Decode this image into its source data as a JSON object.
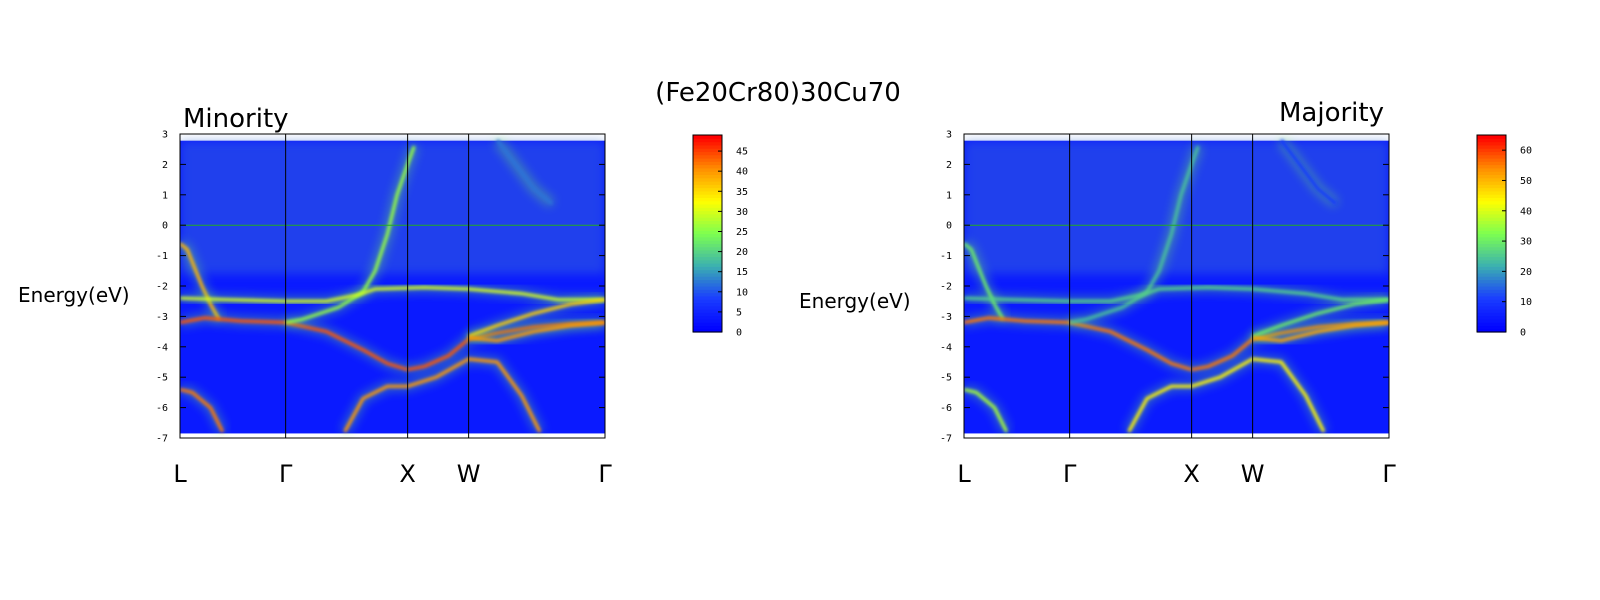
{
  "figure": {
    "title": "(Fe20Cr80)30Cu70",
    "colormap": [
      "#0000ff",
      "#1a3dff",
      "#3bb0b0",
      "#7cff50",
      "#ffff00",
      "#ff9000",
      "#ff0000"
    ],
    "background_band_color": "#0a1aff",
    "fermi_line_color": "#22aa22"
  },
  "chart_data": [
    {
      "type": "heatmap",
      "title": "Minority",
      "ylabel": "Energy(eV)",
      "xlabel": "",
      "kpoints": [
        {
          "label": "L",
          "x": 0
        },
        {
          "label": "Γ",
          "x": 0.866
        },
        {
          "label": "X",
          "x": 1.866
        },
        {
          "label": "W",
          "x": 2.366
        },
        {
          "label": "Γ",
          "x": 3.484
        }
      ],
      "yticks": [
        3,
        2,
        1,
        0,
        -1,
        -2,
        -3,
        -4,
        -5,
        -6,
        -7
      ],
      "ylim": [
        -7,
        3
      ],
      "data_ylim": [
        -6.85,
        2.78
      ],
      "fermi_level": 0,
      "colorbar": {
        "ticks": [
          0,
          5,
          10,
          15,
          20,
          25,
          30,
          35,
          40,
          45
        ],
        "max": 49
      },
      "bands": [
        {
          "x": [
            0,
            0.06,
            0.12,
            0.18,
            0.25,
            0.32
          ],
          "y": [
            -0.6,
            -0.8,
            -1.4,
            -2.0,
            -2.6,
            -3.1
          ],
          "w": 38
        },
        {
          "x": [
            0,
            0.2,
            0.5,
            0.866,
            1.2,
            1.5,
            1.7,
            1.866
          ],
          "y": [
            -3.2,
            -3.05,
            -3.15,
            -3.2,
            -3.5,
            -4.1,
            -4.55,
            -4.75
          ],
          "w": 44
        },
        {
          "x": [
            1.866,
            2.0,
            2.2,
            2.366,
            2.6,
            2.9,
            3.2,
            3.484
          ],
          "y": [
            -4.75,
            -4.65,
            -4.3,
            -3.75,
            -3.55,
            -3.35,
            -3.25,
            -3.2
          ],
          "w": 44
        },
        {
          "x": [
            0.866,
            1.0,
            1.3,
            1.5,
            1.6,
            1.7,
            1.78,
            1.866,
            1.92
          ],
          "y": [
            -3.2,
            -3.1,
            -2.7,
            -2.2,
            -1.5,
            -0.3,
            1.0,
            2.0,
            2.6
          ],
          "w": 26
        },
        {
          "x": [
            0,
            0.4,
            0.866,
            1.2,
            1.45,
            1.6,
            2.0,
            2.366,
            2.8,
            3.1,
            3.484
          ],
          "y": [
            -2.4,
            -2.45,
            -2.5,
            -2.5,
            -2.3,
            -2.1,
            -2.05,
            -2.1,
            -2.25,
            -2.45,
            -2.45
          ],
          "w": 30
        },
        {
          "x": [
            2.366,
            2.6,
            2.9,
            3.2,
            3.484
          ],
          "y": [
            -3.65,
            -3.3,
            -2.9,
            -2.6,
            -2.45
          ],
          "w": 36
        },
        {
          "x": [
            2.366,
            2.6,
            2.9,
            3.2,
            3.484
          ],
          "y": [
            -3.7,
            -3.8,
            -3.5,
            -3.3,
            -3.2
          ],
          "w": 40
        },
        {
          "x": [
            0,
            0.1,
            0.25,
            0.35
          ],
          "y": [
            -5.4,
            -5.5,
            -6.0,
            -6.8
          ],
          "w": 42
        },
        {
          "x": [
            1.35,
            1.5,
            1.7,
            1.866,
            2.1,
            2.366,
            2.6,
            2.8,
            2.95
          ],
          "y": [
            -6.8,
            -5.7,
            -5.3,
            -5.3,
            -5.0,
            -4.4,
            -4.5,
            -5.6,
            -6.8
          ],
          "w": 40
        },
        {
          "x": [
            2.6,
            2.75,
            2.9,
            3.05
          ],
          "y": [
            2.8,
            2.0,
            1.2,
            0.7
          ],
          "w": 12
        }
      ]
    },
    {
      "type": "heatmap",
      "title": "Majority",
      "ylabel": "Energy(eV)",
      "xlabel": "",
      "kpoints": [
        {
          "label": "L",
          "x": 0
        },
        {
          "label": "Γ",
          "x": 0.866
        },
        {
          "label": "X",
          "x": 1.866
        },
        {
          "label": "W",
          "x": 2.366
        },
        {
          "label": "Γ",
          "x": 3.484
        }
      ],
      "yticks": [
        3,
        2,
        1,
        0,
        -1,
        -2,
        -3,
        -4,
        -5,
        -6,
        -7
      ],
      "ylim": [
        -7,
        3
      ],
      "data_ylim": [
        -6.85,
        2.78
      ],
      "fermi_level": 0,
      "colorbar": {
        "ticks": [
          0,
          10,
          20,
          30,
          40,
          50,
          60
        ],
        "max": 65
      },
      "bands": [
        {
          "x": [
            0,
            0.06,
            0.12,
            0.18,
            0.25,
            0.32
          ],
          "y": [
            -0.6,
            -0.8,
            -1.4,
            -2.0,
            -2.6,
            -3.1
          ],
          "w": 30
        },
        {
          "x": [
            0,
            0.2,
            0.5,
            0.866,
            1.2,
            1.5,
            1.7,
            1.866
          ],
          "y": [
            -3.2,
            -3.05,
            -3.15,
            -3.2,
            -3.5,
            -4.1,
            -4.55,
            -4.75
          ],
          "w": 56
        },
        {
          "x": [
            1.866,
            2.0,
            2.2,
            2.366,
            2.6,
            2.9,
            3.2,
            3.484
          ],
          "y": [
            -4.75,
            -4.65,
            -4.3,
            -3.75,
            -3.55,
            -3.35,
            -3.25,
            -3.2
          ],
          "w": 56
        },
        {
          "x": [
            0.866,
            1.0,
            1.3,
            1.5,
            1.6,
            1.7,
            1.78,
            1.866,
            1.92
          ],
          "y": [
            -3.2,
            -3.1,
            -2.7,
            -2.2,
            -1.5,
            -0.3,
            1.0,
            2.0,
            2.6
          ],
          "w": 24
        },
        {
          "x": [
            0,
            0.4,
            0.866,
            1.2,
            1.45,
            1.6,
            2.0,
            2.366,
            2.8,
            3.1,
            3.484
          ],
          "y": [
            -2.4,
            -2.45,
            -2.5,
            -2.5,
            -2.3,
            -2.1,
            -2.05,
            -2.1,
            -2.25,
            -2.45,
            -2.45
          ],
          "w": 26
        },
        {
          "x": [
            2.366,
            2.6,
            2.9,
            3.2,
            3.484
          ],
          "y": [
            -3.65,
            -3.3,
            -2.9,
            -2.6,
            -2.45
          ],
          "w": 30
        },
        {
          "x": [
            2.366,
            2.6,
            2.9,
            3.2,
            3.484
          ],
          "y": [
            -3.7,
            -3.8,
            -3.5,
            -3.3,
            -3.2
          ],
          "w": 52
        },
        {
          "x": [
            0,
            0.1,
            0.25,
            0.35
          ],
          "y": [
            -5.4,
            -5.5,
            -6.0,
            -6.8
          ],
          "w": 36
        },
        {
          "x": [
            1.35,
            1.5,
            1.7,
            1.866,
            2.1,
            2.366,
            2.6,
            2.8,
            2.95
          ],
          "y": [
            -6.8,
            -5.7,
            -5.3,
            -5.3,
            -5.0,
            -4.4,
            -4.5,
            -5.6,
            -6.8
          ],
          "w": 44
        },
        {
          "x": [
            2.6,
            2.75,
            2.9,
            3.05
          ],
          "y": [
            2.8,
            2.0,
            1.2,
            0.7
          ],
          "w": 10
        }
      ]
    }
  ]
}
